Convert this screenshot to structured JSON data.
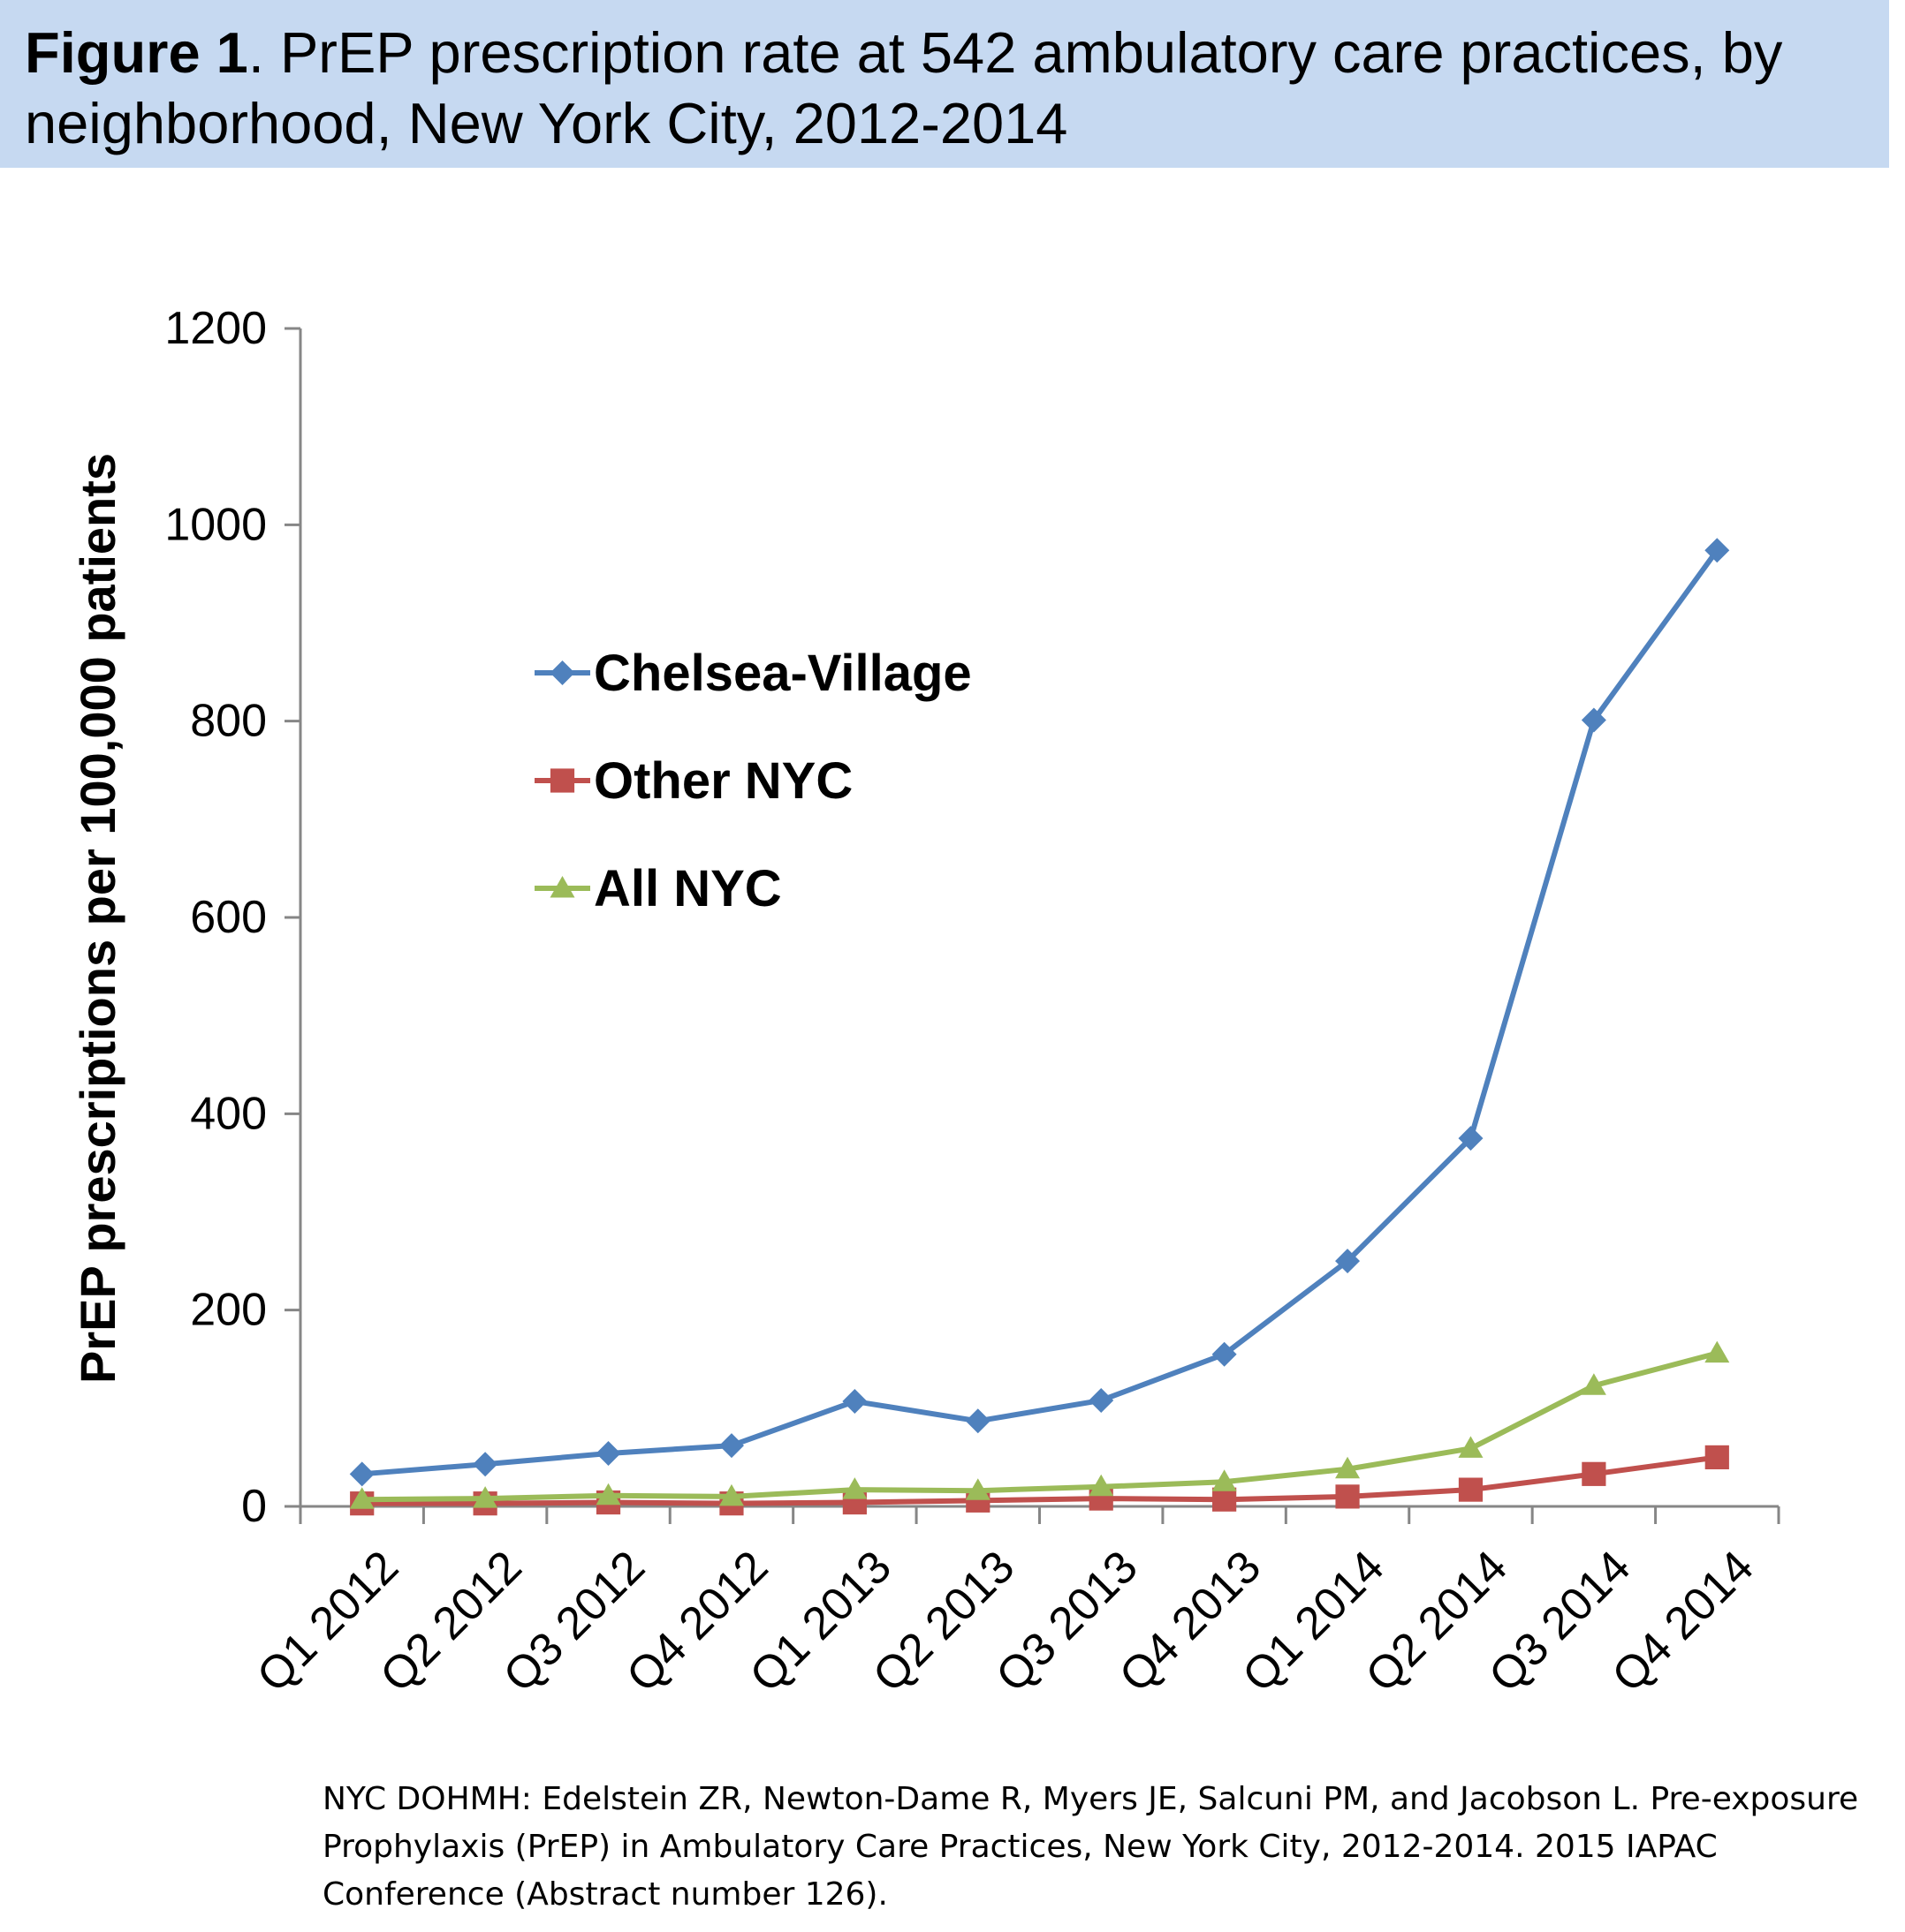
{
  "figure": {
    "title_bold": "Figure 1",
    "title_rest": ". PrEP prescription rate at 542 ambulatory care practices, by neighborhood, New York City, 2012-2014",
    "citation": "NYC DOHMH:  Edelstein ZR, Newton-Dame R, Myers JE, Salcuni PM, and Jacobson L. Pre-exposure Prophylaxis (PrEP) in Ambulatory Care Practices, New York City, 2012-2014. 2015 IAPAC Conference (Abstract number 126).",
    "title_band_color": "#c6d9f1"
  },
  "chart_data": {
    "type": "line",
    "title": "",
    "xlabel": "",
    "ylabel": "PrEP prescriptions per 100,000 patients",
    "ylim": [
      0,
      1200
    ],
    "yticks": [
      0,
      200,
      400,
      600,
      800,
      1000,
      1200
    ],
    "grid": false,
    "legend_position": "upper-left inside plot",
    "categories": [
      "Q1 2012",
      "Q2 2012",
      "Q3 2012",
      "Q4 2012",
      "Q1 2013",
      "Q2 2013",
      "Q3 2013",
      "Q4 2013",
      "Q1 2014",
      "Q2 2014",
      "Q3 2014",
      "Q4 2014"
    ],
    "series": [
      {
        "name": "Chelsea-Village",
        "marker": "diamond",
        "color": "#4f81bd",
        "values": [
          33,
          43,
          54,
          62,
          107,
          87,
          108,
          155,
          250,
          375,
          801,
          974
        ]
      },
      {
        "name": "Other NYC",
        "marker": "square",
        "color": "#c0504d",
        "values": [
          3,
          3,
          4,
          3,
          4,
          6,
          8,
          7,
          10,
          17,
          33,
          50
        ]
      },
      {
        "name": "All NYC",
        "marker": "triangle",
        "color": "#9bbb59",
        "values": [
          7,
          8,
          11,
          10,
          17,
          16,
          20,
          25,
          38,
          59,
          123,
          156
        ]
      }
    ]
  }
}
